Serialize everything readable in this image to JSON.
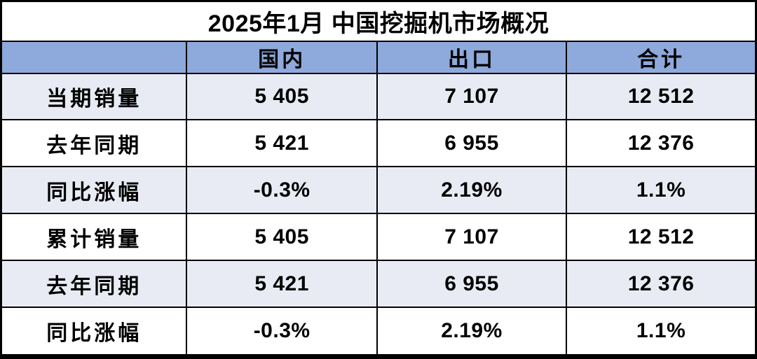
{
  "title": "2025年1月 中国挖掘机市场概况",
  "colors": {
    "header_bg": "#8EA9DB",
    "banded_row_bg": "#E9EBF4",
    "plain_row_bg": "#FFFFFF",
    "border": "#000000",
    "text": "#000000",
    "title_bg": "#FFFFFF"
  },
  "chart_data": {
    "type": "table",
    "title": "2025年1月 中国挖掘机市场概况",
    "columns": [
      "",
      "国内",
      "出口",
      "合计"
    ],
    "rows": [
      {
        "label": "当期销量",
        "domestic": "5 405",
        "export": "7 107",
        "total": "12 512"
      },
      {
        "label": "去年同期",
        "domestic": "5 421",
        "export": "6 955",
        "total": "12 376"
      },
      {
        "label": "同比涨幅",
        "domestic": "-0.3%",
        "export": "2.19%",
        "total": "1.1%"
      },
      {
        "label": "累计销量",
        "domestic": "5 405",
        "export": "7 107",
        "total": "12 512"
      },
      {
        "label": "去年同期",
        "domestic": "5 421",
        "export": "6 955",
        "total": "12 376"
      },
      {
        "label": "同比涨幅",
        "domestic": "-0.3%",
        "export": "2.19%",
        "total": "1.1%"
      }
    ]
  }
}
